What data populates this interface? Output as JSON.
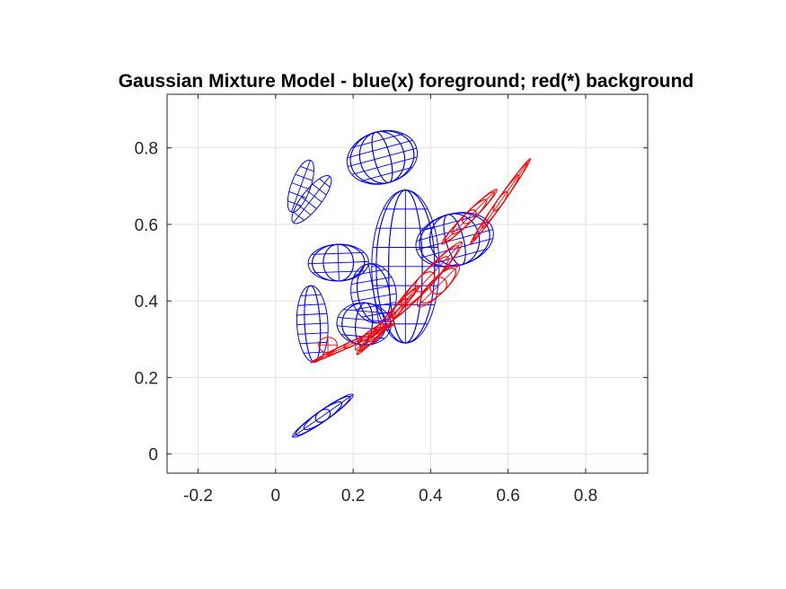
{
  "chart_data": {
    "type": "scatter",
    "title": "Gaussian Mixture Model - blue(x) foreground; red(*) background",
    "xlabel": "",
    "ylabel": "",
    "xlim": [
      -0.28,
      0.96
    ],
    "ylim": [
      -0.05,
      0.94
    ],
    "xticks": [
      -0.2,
      0,
      0.2,
      0.4,
      0.6,
      0.8
    ],
    "yticks": [
      0,
      0.2,
      0.4,
      0.6,
      0.8
    ],
    "xtick_labels": [
      "-0.2",
      "0",
      "0.2",
      "0.4",
      "0.6",
      "0.8"
    ],
    "ytick_labels": [
      "0",
      "0.2",
      "0.4",
      "0.6",
      "0.8"
    ],
    "grid": true,
    "colors": {
      "foreground": "#0000ff",
      "background": "#ff0000"
    },
    "series": [
      {
        "color": "#0000ff",
        "ellipsoids": [
          {
            "cx": 0.335,
            "cy": 0.49,
            "rx": 0.087,
            "ry": 0.2,
            "angle": 0
          },
          {
            "cx": 0.275,
            "cy": 0.775,
            "rx": 0.092,
            "ry": 0.068,
            "angle": 15
          },
          {
            "cx": 0.065,
            "cy": 0.7,
            "rx": 0.025,
            "ry": 0.072,
            "angle": -20
          },
          {
            "cx": 0.093,
            "cy": 0.665,
            "rx": 0.025,
            "ry": 0.077,
            "angle": -38
          },
          {
            "cx": 0.162,
            "cy": 0.5,
            "rx": 0.078,
            "ry": 0.048,
            "angle": 2
          },
          {
            "cx": 0.253,
            "cy": 0.42,
            "rx": 0.058,
            "ry": 0.078,
            "angle": 10
          },
          {
            "cx": 0.228,
            "cy": 0.34,
            "rx": 0.07,
            "ry": 0.055,
            "angle": -5
          },
          {
            "cx": 0.095,
            "cy": 0.34,
            "rx": 0.04,
            "ry": 0.1,
            "angle": 3
          },
          {
            "cx": 0.122,
            "cy": 0.1,
            "rx": 0.095,
            "ry": 0.014,
            "angle": 35
          },
          {
            "cx": 0.462,
            "cy": 0.56,
            "rx": 0.102,
            "ry": 0.068,
            "angle": 15
          }
        ]
      },
      {
        "color": "#ff0000",
        "ellipsoids": [
          {
            "cx": 0.58,
            "cy": 0.66,
            "rx": 0.135,
            "ry": 0.008,
            "angle": 55
          },
          {
            "cx": 0.5,
            "cy": 0.62,
            "rx": 0.1,
            "ry": 0.012,
            "angle": 45
          },
          {
            "cx": 0.385,
            "cy": 0.45,
            "rx": 0.14,
            "ry": 0.018,
            "angle": 47
          },
          {
            "cx": 0.42,
            "cy": 0.44,
            "rx": 0.075,
            "ry": 0.02,
            "angle": 45
          },
          {
            "cx": 0.29,
            "cy": 0.35,
            "rx": 0.12,
            "ry": 0.01,
            "angle": 48
          },
          {
            "cx": 0.245,
            "cy": 0.305,
            "rx": 0.05,
            "ry": 0.015,
            "angle": 40
          },
          {
            "cx": 0.135,
            "cy": 0.285,
            "rx": 0.024,
            "ry": 0.02,
            "angle": 0
          },
          {
            "cx": 0.2,
            "cy": 0.29,
            "rx": 0.12,
            "ry": 0.006,
            "angle": 25
          }
        ]
      }
    ]
  }
}
